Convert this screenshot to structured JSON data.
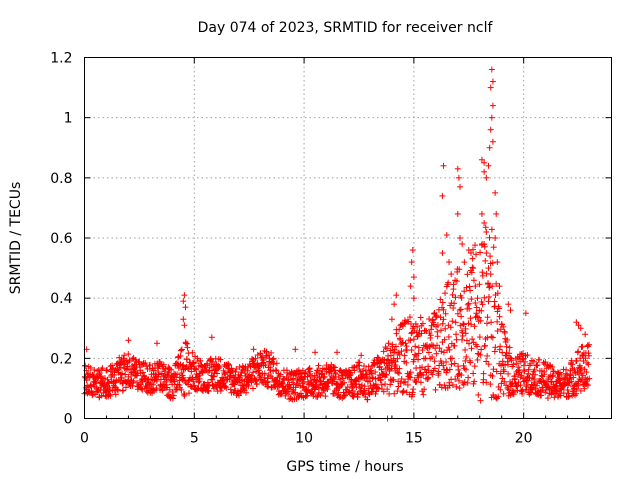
{
  "chart_data": {
    "type": "scatter",
    "title": "Day 074 of 2023, SRMTID for receiver nclf",
    "xlabel": "GPS time / hours",
    "ylabel": "SRMTID / TECUs",
    "xlim": [
      0,
      24
    ],
    "ylim": [
      0,
      1.2
    ],
    "x_ticks": [
      0,
      5,
      10,
      15,
      20
    ],
    "x_tick_labels": [
      "0",
      "5",
      "10",
      "15",
      "20"
    ],
    "y_ticks": [
      0,
      0.2,
      0.4,
      0.6,
      0.8,
      1.0,
      1.2
    ],
    "y_tick_labels": [
      "0",
      "0.2",
      "0.4",
      "0.6",
      "0.8",
      "1",
      "1.2"
    ],
    "grid": true,
    "marker": "+",
    "series": [
      {
        "name": "SRMTID",
        "color": "#ff0000",
        "envelope": {
          "x": [
            0.0,
            0.5,
            1.0,
            1.5,
            2.0,
            2.5,
            3.0,
            3.5,
            4.0,
            4.4,
            4.6,
            5.0,
            5.5,
            6.0,
            6.5,
            7.0,
            7.5,
            8.0,
            8.5,
            9.0,
            9.5,
            10.0,
            10.5,
            11.0,
            11.5,
            12.0,
            12.5,
            13.0,
            13.5,
            14.0,
            14.5,
            15.0,
            15.5,
            16.0,
            16.5,
            17.0,
            17.5,
            18.0,
            18.5,
            19.0,
            19.5,
            20.0,
            20.5,
            21.0,
            21.5,
            22.0,
            22.5,
            23.0
          ],
          "center": [
            0.13,
            0.12,
            0.12,
            0.14,
            0.16,
            0.14,
            0.13,
            0.14,
            0.11,
            0.16,
            0.17,
            0.15,
            0.14,
            0.15,
            0.14,
            0.12,
            0.14,
            0.17,
            0.16,
            0.12,
            0.11,
            0.12,
            0.12,
            0.13,
            0.12,
            0.11,
            0.13,
            0.12,
            0.15,
            0.18,
            0.2,
            0.22,
            0.2,
            0.22,
            0.27,
            0.3,
            0.32,
            0.34,
            0.35,
            0.2,
            0.14,
            0.15,
            0.14,
            0.13,
            0.11,
            0.12,
            0.16,
            0.17
          ],
          "spread": [
            0.05,
            0.05,
            0.05,
            0.06,
            0.06,
            0.05,
            0.05,
            0.05,
            0.05,
            0.07,
            0.1,
            0.06,
            0.05,
            0.06,
            0.05,
            0.05,
            0.05,
            0.06,
            0.06,
            0.05,
            0.05,
            0.05,
            0.05,
            0.06,
            0.05,
            0.05,
            0.06,
            0.06,
            0.07,
            0.1,
            0.12,
            0.15,
            0.12,
            0.14,
            0.18,
            0.2,
            0.22,
            0.28,
            0.32,
            0.12,
            0.07,
            0.07,
            0.06,
            0.06,
            0.05,
            0.05,
            0.08,
            0.08
          ]
        },
        "points": [
          [
            4.55,
            0.41
          ],
          [
            4.5,
            0.39
          ],
          [
            4.6,
            0.37
          ],
          [
            4.5,
            0.33
          ],
          [
            4.55,
            0.31
          ],
          [
            13.8,
            0.0
          ],
          [
            14.1,
            0.38
          ],
          [
            14.2,
            0.41
          ],
          [
            14.0,
            0.33
          ],
          [
            14.9,
            0.52
          ],
          [
            14.95,
            0.56
          ],
          [
            15.0,
            0.47
          ],
          [
            14.85,
            0.44
          ],
          [
            15.0,
            0.4
          ],
          [
            16.35,
            0.84
          ],
          [
            16.3,
            0.74
          ],
          [
            16.3,
            0.55
          ],
          [
            16.5,
            0.61
          ],
          [
            16.6,
            0.52
          ],
          [
            16.7,
            0.48
          ],
          [
            17.0,
            0.83
          ],
          [
            17.05,
            0.8
          ],
          [
            17.1,
            0.77
          ],
          [
            17.0,
            0.68
          ],
          [
            17.1,
            0.6
          ],
          [
            17.2,
            0.58
          ],
          [
            17.3,
            0.52
          ],
          [
            17.5,
            0.56
          ],
          [
            17.6,
            0.55
          ],
          [
            17.7,
            0.5
          ],
          [
            17.8,
            0.44
          ],
          [
            17.9,
            0.4
          ],
          [
            18.1,
            0.68
          ],
          [
            18.2,
            0.65
          ],
          [
            18.3,
            0.62
          ],
          [
            18.2,
            0.58
          ],
          [
            18.3,
            0.55
          ],
          [
            18.1,
            0.86
          ],
          [
            18.2,
            0.85
          ],
          [
            18.2,
            0.82
          ],
          [
            18.3,
            0.8
          ],
          [
            18.4,
            0.84
          ],
          [
            18.45,
            0.9
          ],
          [
            18.5,
            0.96
          ],
          [
            18.55,
            1.0
          ],
          [
            18.6,
            1.04
          ],
          [
            18.5,
            1.1
          ],
          [
            18.55,
            1.16
          ],
          [
            18.6,
            1.12
          ],
          [
            18.6,
            0.92
          ],
          [
            18.7,
            0.75
          ],
          [
            18.75,
            0.68
          ],
          [
            18.7,
            0.6
          ],
          [
            18.8,
            0.52
          ],
          [
            18.9,
            0.44
          ],
          [
            18.5,
            0.48
          ],
          [
            18.4,
            0.5
          ],
          [
            19.3,
            0.38
          ],
          [
            19.4,
            0.36
          ],
          [
            20.1,
            0.35
          ],
          [
            22.4,
            0.32
          ],
          [
            22.5,
            0.31
          ],
          [
            22.6,
            0.3
          ],
          [
            22.8,
            0.28
          ],
          [
            0.1,
            0.23
          ],
          [
            2.0,
            0.26
          ],
          [
            3.3,
            0.25
          ],
          [
            5.8,
            0.27
          ],
          [
            7.7,
            0.23
          ],
          [
            9.6,
            0.23
          ],
          [
            10.5,
            0.22
          ],
          [
            11.5,
            0.22
          ],
          [
            12.6,
            0.21
          ]
        ]
      }
    ]
  }
}
